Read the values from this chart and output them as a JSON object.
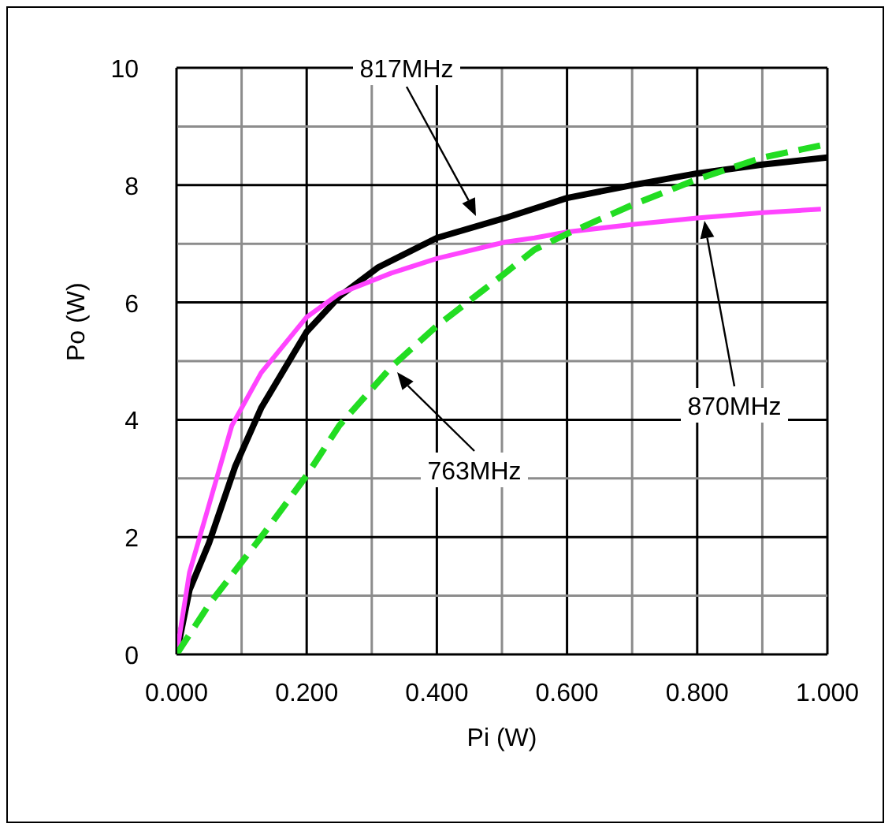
{
  "chart_data": {
    "type": "line",
    "xlabel": "Pi (W)",
    "ylabel": "Po (W)",
    "xlim": [
      0,
      1
    ],
    "ylim": [
      0,
      10
    ],
    "xticks": [
      {
        "value": 0,
        "label": "0.000"
      },
      {
        "value": 0.1,
        "label": null
      },
      {
        "value": 0.2,
        "label": "0.200"
      },
      {
        "value": 0.3,
        "label": null
      },
      {
        "value": 0.4,
        "label": "0.400"
      },
      {
        "value": 0.5,
        "label": null
      },
      {
        "value": 0.6,
        "label": "0.600"
      },
      {
        "value": 0.7,
        "label": null
      },
      {
        "value": 0.8,
        "label": "0.800"
      },
      {
        "value": 0.9,
        "label": null
      },
      {
        "value": 1,
        "label": "1.000"
      }
    ],
    "yticks": [
      0,
      {
        "value": 1,
        "label": null
      },
      2,
      {
        "value": 3,
        "label": null
      },
      4,
      {
        "value": 5,
        "label": null
      },
      6,
      {
        "value": 7,
        "label": null
      },
      8,
      {
        "value": 9,
        "label": null
      },
      10
    ],
    "grid": true,
    "marker": "none",
    "series": [
      {
        "color": "#000000",
        "line_style": "solid",
        "x": [
          0,
          0.02,
          0.05,
          0.09,
          0.13,
          0.2,
          0.25,
          0.31,
          0.4,
          0.505,
          0.55,
          0.6,
          0.7,
          0.8,
          0.9,
          1.0
        ],
        "values": [
          0,
          1.1,
          1.9,
          3.2,
          4.2,
          5.5,
          6.1,
          6.6,
          7.1,
          7.44,
          7.6,
          7.78,
          8.0,
          8.2,
          8.35,
          8.47
        ]
      },
      {
        "color": "#ff44ff",
        "line_style": "solid",
        "x": [
          0,
          0.02,
          0.05,
          0.085,
          0.13,
          0.2,
          0.25,
          0.33,
          0.4,
          0.505,
          0.55,
          0.6,
          0.7,
          0.8,
          0.9,
          0.99
        ],
        "values": [
          0,
          1.4,
          2.55,
          3.9,
          4.8,
          5.75,
          6.15,
          6.5,
          6.75,
          7.03,
          7.1,
          7.2,
          7.33,
          7.44,
          7.53,
          7.59
        ]
      },
      {
        "color": "#22dd22",
        "line_style": "dashed",
        "x": [
          0,
          0.05,
          0.13,
          0.2,
          0.25,
          0.33,
          0.4,
          0.47,
          0.505,
          0.55,
          0.6,
          0.7,
          0.8,
          0.9,
          1.0
        ],
        "values": [
          0,
          0.85,
          2.0,
          3.05,
          3.9,
          4.9,
          5.6,
          6.2,
          6.5,
          6.9,
          7.17,
          7.66,
          8.1,
          8.47,
          8.7
        ]
      }
    ],
    "annotations": [
      "817MHz",
      "870MHz",
      "763MHz"
    ]
  }
}
